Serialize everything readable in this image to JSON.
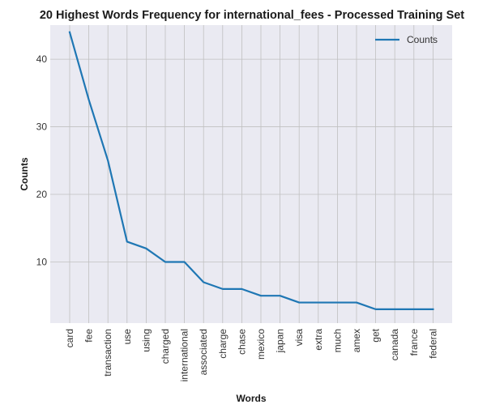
{
  "chart_data": {
    "type": "line",
    "title": "20 Highest Words Frequency for international_fees - Processed Training Set",
    "xlabel": "Words",
    "ylabel": "Counts",
    "categories": [
      "card",
      "fee",
      "transaction",
      "use",
      "using",
      "charged",
      "international",
      "associated",
      "charge",
      "chase",
      "mexico",
      "japan",
      "visa",
      "extra",
      "much",
      "amex",
      "get",
      "canada",
      "france",
      "federal"
    ],
    "series": [
      {
        "name": "Counts",
        "values": [
          44,
          34,
          25,
          13,
          12,
          10,
          10,
          7,
          6,
          6,
          5,
          5,
          4,
          4,
          4,
          4,
          3,
          3,
          3,
          3
        ],
        "color": "#1f77b4"
      }
    ],
    "yticks": [
      10,
      20,
      30,
      40
    ],
    "ylim": [
      0.95,
      45.05
    ],
    "grid": true,
    "legend": "top-right",
    "background": "#eaeaf2",
    "grid_color": "#c0c0c0"
  }
}
